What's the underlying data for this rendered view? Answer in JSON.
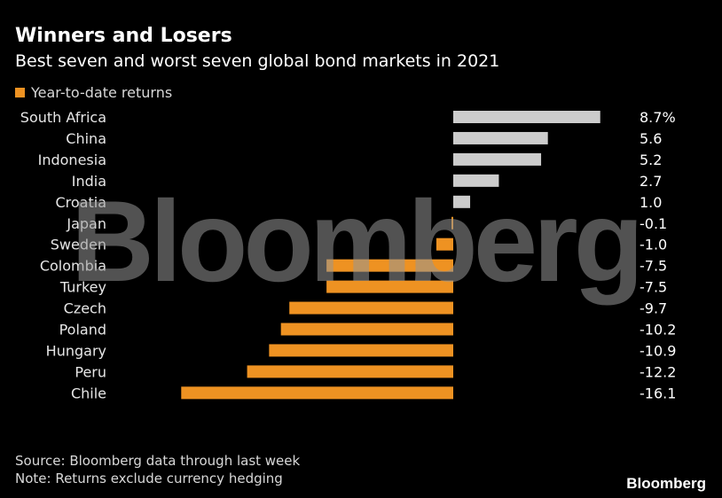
{
  "header": {
    "title": "Winners and Losers",
    "subtitle": "Best seven and worst seven global bond markets in 2021"
  },
  "watermark": "Bloomberg",
  "footer": {
    "source": "Source: Bloomberg data through last week",
    "note": "Note: Returns exclude currency hedging",
    "brand": "Bloomberg"
  },
  "colors": {
    "positive": "#cccccc",
    "negative": "#ee9222",
    "background": "#000000"
  },
  "chart_data": {
    "type": "bar",
    "orientation": "horizontal",
    "title": "Winners and Losers",
    "subtitle": "Best seven and worst seven global bond markets in 2021",
    "legend": {
      "entries": [
        "Year-to-date returns"
      ],
      "placement": "top-left"
    },
    "categories": [
      "South Africa",
      "China",
      "Indonesia",
      "India",
      "Croatia",
      "Japan",
      "Sweden",
      "Colombia",
      "Turkey",
      "Czech",
      "Poland",
      "Hungary",
      "Peru",
      "Chile"
    ],
    "series": [
      {
        "name": "Year-to-date returns",
        "values": [
          8.7,
          5.6,
          5.2,
          2.7,
          1.0,
          -0.1,
          -1.0,
          -7.5,
          -7.5,
          -9.7,
          -10.2,
          -10.9,
          -12.2,
          -16.1
        ]
      }
    ],
    "value_labels": [
      "8.7%",
      "5.6",
      "5.2",
      "2.7",
      "1.0",
      "-0.1",
      "-1.0",
      "-7.5",
      "-7.5",
      "-9.7",
      "-10.2",
      "-10.9",
      "-12.2",
      "-16.1"
    ],
    "xlim": [
      -16.1,
      8.7
    ],
    "grid": false
  }
}
